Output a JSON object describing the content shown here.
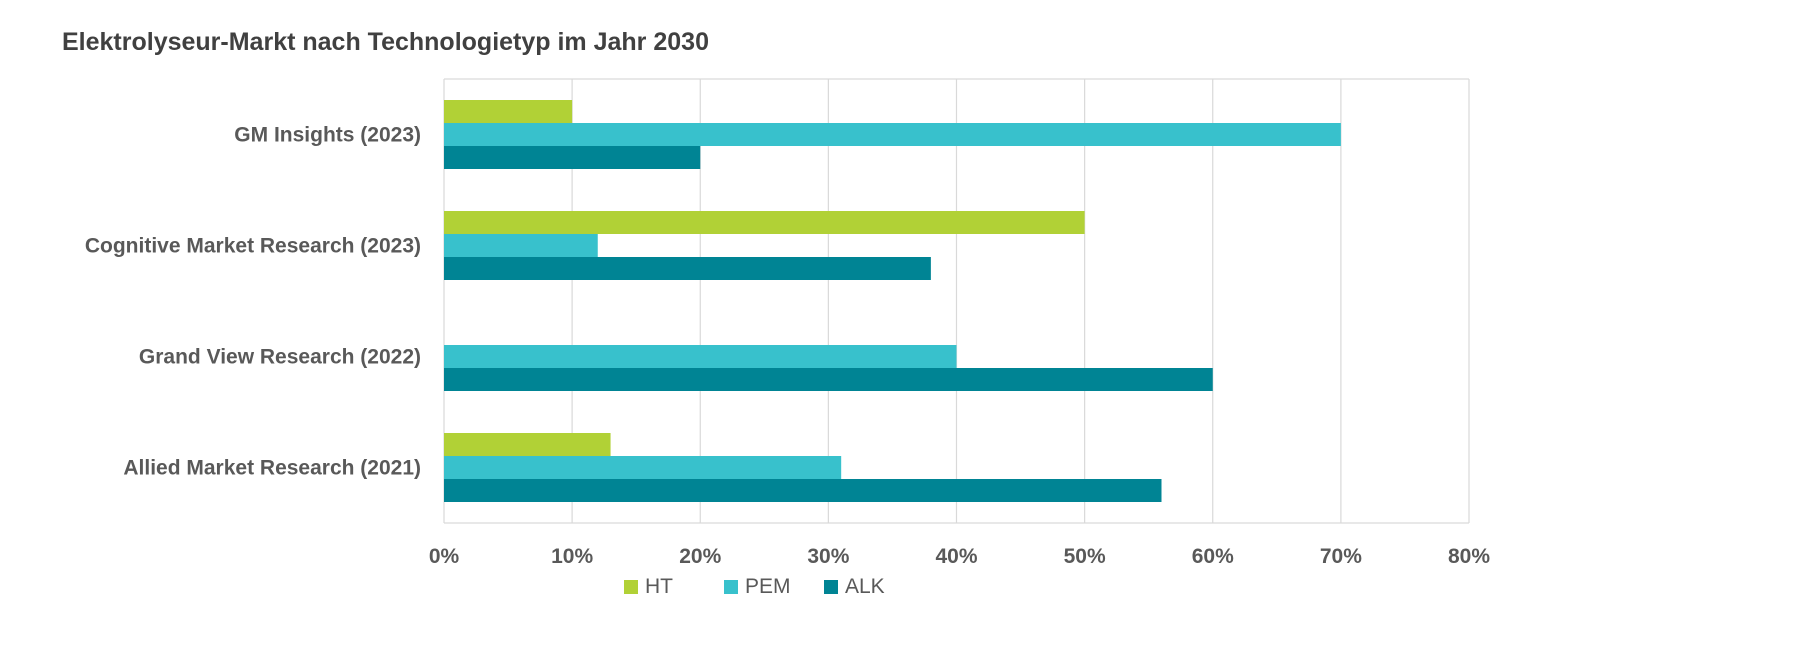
{
  "chart_data": {
    "type": "bar",
    "orientation": "horizontal",
    "title": "Elektrolyseur-Markt nach Technologietyp im Jahr 2030",
    "categories": [
      "GM Insights (2023)",
      "Cognitive Market Research (2023)",
      "Grand View Research (2022)",
      "Allied Market Research (2021)"
    ],
    "series": [
      {
        "name": "HT",
        "color": "#b1d136",
        "values": [
          10,
          50,
          0,
          13
        ]
      },
      {
        "name": "PEM",
        "color": "#38c1cc",
        "values": [
          70,
          12,
          40,
          31
        ]
      },
      {
        "name": "ALK",
        "color": "#008494",
        "values": [
          20,
          38,
          60,
          56
        ]
      }
    ],
    "x_ticks": [
      "0%",
      "10%",
      "20%",
      "30%",
      "40%",
      "50%",
      "60%",
      "70%",
      "80%"
    ],
    "xlim": [
      0,
      80
    ],
    "grid": true,
    "legend_position": "bottom"
  }
}
